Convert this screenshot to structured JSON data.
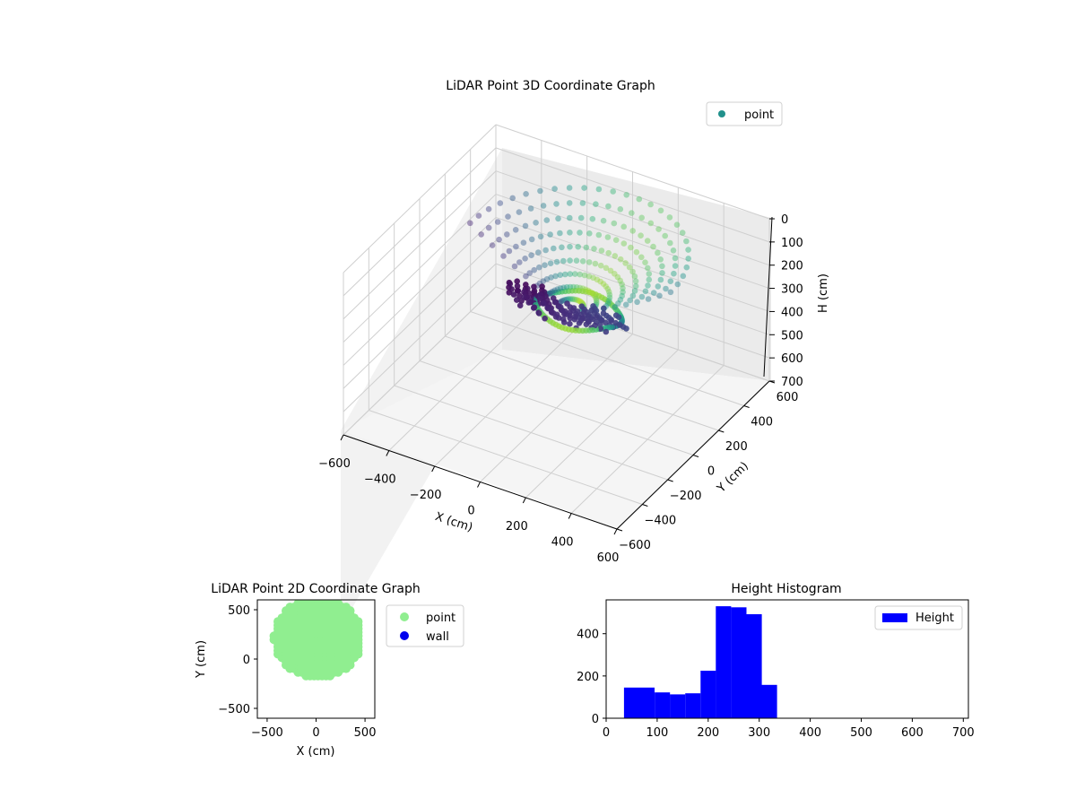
{
  "chart_data": [
    {
      "type": "scatter",
      "projection": "3d",
      "title": "LiDAR Point 3D Coordinate Graph",
      "xlabel": "X (cm)",
      "ylabel": "Y (cm)",
      "zlabel": "H (cm)",
      "xlim": [
        -600,
        600
      ],
      "ylim": [
        -600,
        600
      ],
      "zlim": [
        700,
        0
      ],
      "xticks": [
        -600,
        -400,
        -200,
        0,
        200,
        400,
        600
      ],
      "yticks": [
        -600,
        -400,
        -200,
        0,
        200,
        400,
        600
      ],
      "zticks": [
        0,
        100,
        200,
        300,
        400,
        500,
        600,
        700
      ],
      "grid": true,
      "legend": {
        "placement": "top-right",
        "entries": [
          {
            "label": "point",
            "color": "#21918c"
          }
        ]
      },
      "colormap": "viridis",
      "series": [
        {
          "name": "point",
          "shape": "bowl",
          "x_range": [
            -430,
            430
          ],
          "y_range": [
            -170,
            600
          ],
          "h_range": [
            50,
            330
          ]
        }
      ]
    },
    {
      "type": "scatter",
      "title": "LiDAR Point 2D Coordinate Graph",
      "xlabel": "X (cm)",
      "ylabel": "Y (cm)",
      "xlim": [
        -600,
        600
      ],
      "ylim": [
        -600,
        600
      ],
      "xticks": [
        -500,
        0,
        500
      ],
      "yticks": [
        -500,
        0,
        500
      ],
      "legend": {
        "placement": "outside-right",
        "entries": [
          {
            "label": "point",
            "color": "#90ee90"
          },
          {
            "label": "wall",
            "color": "#0000ee"
          }
        ]
      },
      "series": [
        {
          "name": "point",
          "color": "#90ee90",
          "region": {
            "x_range": [
              -430,
              430
            ],
            "y_range": [
              -170,
              600
            ]
          }
        },
        {
          "name": "wall",
          "color": "#0000ee",
          "values": []
        }
      ]
    },
    {
      "type": "bar",
      "title": "Height Histogram",
      "xlim": [
        0,
        710
      ],
      "ylim": [
        0,
        560
      ],
      "xticks": [
        0,
        100,
        200,
        300,
        400,
        500,
        600,
        700
      ],
      "yticks": [
        0,
        200,
        400
      ],
      "legend": {
        "placement": "top-right",
        "entries": [
          {
            "label": "Height",
            "color": "#0000ff"
          }
        ]
      },
      "bins": [
        {
          "x0": 35,
          "x1": 95,
          "count": 145
        },
        {
          "x0": 95,
          "x1": 125,
          "count": 122
        },
        {
          "x0": 125,
          "x1": 155,
          "count": 113
        },
        {
          "x0": 155,
          "x1": 185,
          "count": 118
        },
        {
          "x0": 185,
          "x1": 215,
          "count": 225
        },
        {
          "x0": 215,
          "x1": 245,
          "count": 530
        },
        {
          "x0": 245,
          "x1": 275,
          "count": 525
        },
        {
          "x0": 275,
          "x1": 305,
          "count": 492
        },
        {
          "x0": 305,
          "x1": 335,
          "count": 158
        }
      ]
    }
  ]
}
